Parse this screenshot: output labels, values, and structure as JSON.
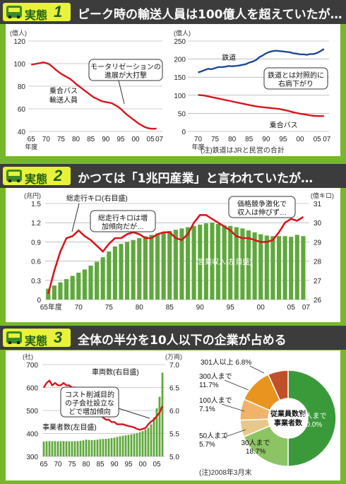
{
  "sections": [
    {
      "label": "実態",
      "number": "1",
      "headline": "ピーク時の輸送人員は100億人を超えていたが…"
    },
    {
      "label": "実態",
      "number": "2",
      "headline": "かつては「1兆円産業」と言われていたが…"
    },
    {
      "label": "実態",
      "number": "3",
      "headline": "全体の半分を10人以下の企業が占める"
    }
  ],
  "notes": {
    "chart1b": "(注)鉄道はJRと民営の合計",
    "chart3b": "(注)2008年3月末"
  },
  "colors": {
    "red": "#d8151d",
    "blue": "#1d4a97",
    "green": "#5fa83c",
    "bar_green": "#5fa83c"
  },
  "chart_data": [
    {
      "id": "bus-passengers",
      "type": "line",
      "unit": "(億人)",
      "x_ticks": [
        "65",
        "70",
        "75",
        "80",
        "85",
        "90",
        "95",
        "00",
        "05",
        "07"
      ],
      "x_extra_label": "年度",
      "ylim": [
        40,
        120
      ],
      "y_ticks": [
        "40",
        "60",
        "80",
        "100",
        "120"
      ],
      "series": [
        {
          "name": "乗合バス輸送人員",
          "color": "#d8151d",
          "x": [
            1965,
            1967,
            1969,
            1970,
            1971,
            1972,
            1973,
            1974,
            1975,
            1976,
            1977,
            1978,
            1979,
            1980,
            1981,
            1982,
            1983,
            1984,
            1985,
            1986,
            1987,
            1988,
            1989,
            1990,
            1991,
            1992,
            1993,
            1994,
            1995,
            1996,
            1997,
            1998,
            1999,
            2000,
            2001,
            2002,
            2003,
            2004,
            2005,
            2006,
            2007
          ],
          "values": [
            99,
            100,
            101,
            100.5,
            99.5,
            97.5,
            95,
            93,
            91,
            89.5,
            88,
            86.5,
            84.5,
            82,
            80,
            78,
            76,
            74,
            72,
            70,
            69,
            67.5,
            66.5,
            66,
            65.5,
            65,
            63.5,
            62,
            60,
            57.5,
            55,
            53,
            51,
            49,
            47,
            45.5,
            44,
            43,
            42.5,
            42.3,
            42.5
          ]
        }
      ],
      "annotations": [
        {
          "text": [
            "乗合バス",
            "輸送人員"
          ]
        },
        {
          "text": [
            "モータリゼーションの",
            "進展が大打撃"
          ]
        }
      ]
    },
    {
      "id": "rail-vs-bus",
      "type": "line",
      "unit": "(億人)",
      "x_ticks": [
        "70",
        "75",
        "80",
        "85",
        "90",
        "95",
        "00",
        "05",
        "07"
      ],
      "x_extra_label": "年度",
      "ylim": [
        0,
        250
      ],
      "y_ticks": [
        "0",
        "50",
        "100",
        "150",
        "200",
        "250"
      ],
      "series": [
        {
          "name": "鉄道",
          "color": "#1d4a97",
          "x": [
            1970,
            1971,
            1972,
            1973,
            1974,
            1975,
            1976,
            1977,
            1978,
            1979,
            1980,
            1981,
            1982,
            1983,
            1984,
            1985,
            1986,
            1987,
            1988,
            1989,
            1990,
            1991,
            1992,
            1993,
            1994,
            1995,
            1996,
            1997,
            1998,
            1999,
            2000,
            2001,
            2002,
            2003,
            2004,
            2005,
            2006,
            2007
          ],
          "values": [
            163,
            166,
            170,
            173,
            172,
            175,
            178,
            178,
            179,
            181,
            180,
            181,
            182,
            184,
            186,
            190,
            193,
            197,
            205,
            210,
            216,
            220,
            222,
            223,
            222,
            221,
            220,
            219,
            216,
            215,
            213,
            213,
            212,
            214,
            214,
            217,
            222,
            228
          ]
        },
        {
          "name": "乗合バス",
          "color": "#d8151d",
          "x": [
            1970,
            1972,
            1974,
            1976,
            1978,
            1980,
            1982,
            1984,
            1986,
            1988,
            1990,
            1992,
            1994,
            1996,
            1998,
            2000,
            2002,
            2004,
            2005,
            2006,
            2007
          ],
          "values": [
            101,
            99,
            95,
            91,
            87,
            83,
            79,
            75,
            71,
            68,
            66,
            64,
            62,
            58,
            53,
            49,
            46,
            43,
            42.5,
            42.3,
            42.5
          ]
        }
      ],
      "annotations": [
        {
          "text": [
            "鉄道とは対照的に",
            "右肩下がり"
          ]
        }
      ]
    },
    {
      "id": "industry-revenue",
      "type": "bar",
      "left_unit": "(兆円)",
      "right_unit": "(億キロ)",
      "x_ticks": [
        "65年度",
        "70",
        "75",
        "80",
        "85",
        "90",
        "95",
        "00",
        "05",
        "07"
      ],
      "ylim_left": [
        0,
        1.5
      ],
      "y_ticks_left": [
        "0",
        "0.3",
        "0.6",
        "0.9",
        "1.2",
        "1.5"
      ],
      "ylim_right": [
        26,
        31
      ],
      "y_ticks_right": [
        "26",
        "27",
        "28",
        "29",
        "30",
        "31"
      ],
      "bars": {
        "name": "営業収入(左目盛)",
        "color": "#5fa83c",
        "x": [
          1965,
          1966,
          1967,
          1968,
          1969,
          1970,
          1971,
          1972,
          1973,
          1974,
          1975,
          1976,
          1977,
          1978,
          1979,
          1980,
          1981,
          1982,
          1983,
          1984,
          1985,
          1986,
          1987,
          1988,
          1989,
          1990,
          1991,
          1992,
          1993,
          1994,
          1995,
          1996,
          1997,
          1998,
          1999,
          2000,
          2001,
          2002,
          2003,
          2004,
          2005,
          2006,
          2007
        ],
        "values": [
          0.17,
          0.22,
          0.27,
          0.32,
          0.37,
          0.42,
          0.47,
          0.53,
          0.59,
          0.66,
          0.75,
          0.83,
          0.87,
          0.9,
          0.93,
          0.96,
          0.99,
          1.01,
          1.03,
          1.05,
          1.07,
          1.09,
          1.11,
          1.13,
          1.15,
          1.17,
          1.19,
          1.2,
          1.18,
          1.16,
          1.15,
          1.13,
          1.11,
          1.08,
          1.05,
          1.02,
          1.0,
          0.99,
          0.99,
          0.99,
          0.98,
          1.01,
          0.99
        ]
      },
      "line": {
        "name": "総走行キロ(右目盛)",
        "color": "#d8151d",
        "x": [
          1965,
          1966,
          1967,
          1968,
          1969,
          1970,
          1971,
          1972,
          1973,
          1974,
          1975,
          1976,
          1977,
          1978,
          1979,
          1980,
          1981,
          1982,
          1983,
          1984,
          1985,
          1986,
          1987,
          1988,
          1989,
          1990,
          1991,
          1992,
          1993,
          1994,
          1995,
          1996,
          1997,
          1998,
          1999,
          2000,
          2001,
          2002,
          2003,
          2004,
          2005,
          2006,
          2007
        ],
        "values": [
          26.3,
          27.5,
          28.5,
          29.2,
          29.3,
          29.6,
          29.3,
          29.1,
          28.8,
          28.5,
          28.9,
          29.2,
          29.2,
          29.4,
          29.5,
          29.4,
          29.2,
          29.2,
          29.4,
          29.5,
          29.5,
          29.2,
          29.1,
          29.4,
          30.0,
          30.4,
          30.4,
          30.2,
          30.0,
          29.8,
          29.6,
          29.3,
          29.2,
          29.2,
          29.1,
          29.0,
          29.0,
          29.1,
          29.5,
          30.0,
          30.2,
          30.1,
          30.3
        ]
      },
      "annotations": [
        {
          "text": [
            "総走行キロは増",
            "加傾向だが…"
          ]
        },
        {
          "text": [
            "価格競争激化で",
            "収入は伸びず…"
          ]
        }
      ]
    },
    {
      "id": "operators-vehicles",
      "type": "bar",
      "left_unit": "(社)",
      "right_unit": "(万両)",
      "x_ticks": [
        "65",
        "70",
        "75",
        "80",
        "85",
        "90",
        "95",
        "00",
        "05"
      ],
      "ylim_left": [
        300,
        700
      ],
      "y_ticks_left": [
        "300",
        "400",
        "500",
        "600",
        "700"
      ],
      "ylim_right": [
        5.0,
        7.0
      ],
      "y_ticks_right": [
        "5.0",
        "5.5",
        "6.0",
        "6.5",
        "7.0"
      ],
      "bars": {
        "name": "事業者数(左目盛)",
        "color": "#5fa83c",
        "x": [
          1965,
          1966,
          1967,
          1968,
          1969,
          1970,
          1971,
          1972,
          1973,
          1974,
          1975,
          1976,
          1977,
          1978,
          1979,
          1980,
          1981,
          1982,
          1983,
          1984,
          1985,
          1986,
          1987,
          1988,
          1989,
          1990,
          1991,
          1992,
          1993,
          1994,
          1995,
          1996,
          1997,
          1998,
          1999,
          2000,
          2001,
          2002,
          2003,
          2004,
          2005,
          2006,
          2007
        ],
        "values": [
          365,
          366,
          367,
          366,
          367,
          366,
          366,
          367,
          366,
          366,
          366,
          366,
          367,
          368,
          370,
          373,
          372,
          371,
          372,
          373,
          375,
          376,
          377,
          378,
          380,
          382,
          385,
          388,
          390,
          392,
          394,
          396,
          398,
          402,
          406,
          410,
          418,
          425,
          440,
          470,
          510,
          560,
          665
        ]
      },
      "line": {
        "name": "車両数(右目盛)",
        "color": "#d8151d",
        "x": [
          1965,
          1966,
          1967,
          1968,
          1969,
          1970,
          1971,
          1972,
          1973,
          1974,
          1975,
          1976,
          1977,
          1978,
          1979,
          1980,
          1981,
          1982,
          1983,
          1984,
          1985,
          1986,
          1987,
          1988,
          1989,
          1990,
          1991,
          1992,
          1993,
          1994,
          1995,
          1996,
          1997,
          1998,
          1999,
          2000,
          2001,
          2002,
          2003,
          2004,
          2005,
          2006,
          2007
        ],
        "values": [
          6.5,
          6.6,
          6.65,
          6.55,
          6.6,
          6.55,
          6.55,
          6.6,
          6.55,
          6.55,
          6.5,
          6.5,
          6.45,
          6.4,
          6.4,
          6.35,
          6.3,
          6.15,
          6.0,
          5.95,
          5.9,
          5.85,
          5.8,
          5.8,
          5.75,
          5.75,
          5.7,
          5.7,
          5.7,
          5.68,
          5.66,
          5.65,
          5.63,
          5.6,
          5.58,
          5.6,
          5.62,
          5.7,
          5.76,
          5.8,
          5.88,
          5.95,
          6.1
        ]
      },
      "annotations": [
        {
          "text": [
            "コスト削減目的",
            "の子会社設立な",
            "どで増加傾向"
          ]
        },
        {
          "text": [
            "車両数(右目盛)"
          ]
        }
      ]
    },
    {
      "id": "operators-by-size",
      "type": "pie",
      "title": [
        "従業員数別",
        "事業者数"
      ],
      "slices": [
        {
          "label": "10人まで",
          "value": 50.0,
          "value_label": "50.0%",
          "color": "#3a9a3a"
        },
        {
          "label": "30人まで",
          "value": 18.7,
          "value_label": "18.7%",
          "color": "#8cc464"
        },
        {
          "label": "50人まで",
          "value": 5.7,
          "value_label": "5.7%",
          "color": "#e6c98a"
        },
        {
          "label": "100人まで",
          "value": 7.1,
          "value_label": "7.1%",
          "color": "#f0b36a"
        },
        {
          "label": "300人まで",
          "value": 11.7,
          "value_label": "11.7%",
          "color": "#e8941e"
        },
        {
          "label": "301人以上",
          "value": 6.8,
          "value_label": "6.8%",
          "color": "#c0502a"
        }
      ]
    }
  ]
}
